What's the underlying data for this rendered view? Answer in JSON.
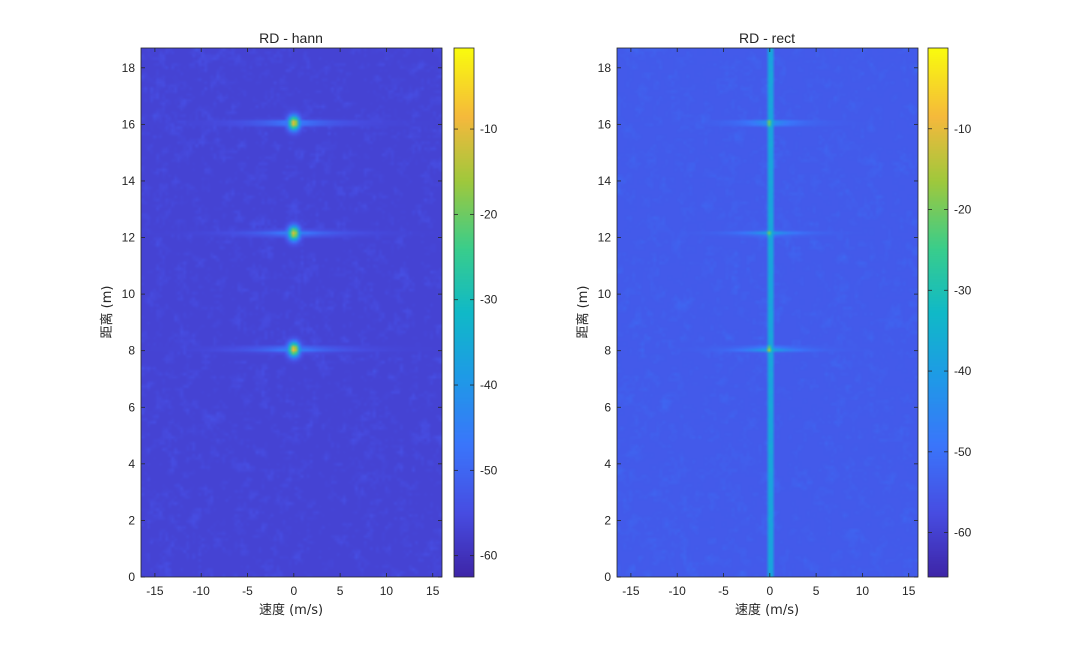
{
  "chart_data": [
    {
      "type": "heatmap",
      "title": "RD - hann",
      "xlabel": "速度 (m/s)",
      "ylabel": "距离 (m)",
      "xlim": [
        -16.5,
        16.0
      ],
      "ylim": [
        0,
        18.7
      ],
      "xticks": [
        -15,
        -10,
        -5,
        0,
        5,
        10,
        15
      ],
      "yticks": [
        0,
        2,
        4,
        6,
        8,
        10,
        12,
        14,
        16,
        18
      ],
      "colorbar": {
        "range": [
          -62.5,
          -0.5
        ],
        "ticks": [
          -60,
          -50,
          -40,
          -30,
          -20,
          -10
        ]
      },
      "noise_floor": -57,
      "targets": [
        {
          "x": 0,
          "y": 16.05,
          "peak": -8
        },
        {
          "x": 0,
          "y": 12.15,
          "peak": -10
        },
        {
          "x": 0,
          "y": 8.05,
          "peak": -7
        }
      ],
      "zero_doppler_line": false
    },
    {
      "type": "heatmap",
      "title": "RD - rect",
      "xlabel": "速度 (m/s)",
      "ylabel": "距离 (m)",
      "xlim": [
        -16.5,
        16.0
      ],
      "ylim": [
        0,
        18.7
      ],
      "xticks": [
        -15,
        -10,
        -5,
        0,
        5,
        10,
        15
      ],
      "yticks": [
        0,
        2,
        4,
        6,
        8,
        10,
        12,
        14,
        16,
        18
      ],
      "colorbar": {
        "range": [
          -65.5,
          0.0
        ],
        "ticks": [
          -60,
          -50,
          -40,
          -30,
          -20,
          -10
        ]
      },
      "noise_floor": -55,
      "targets": [
        {
          "x": 0,
          "y": 16.05,
          "peak": -12
        },
        {
          "x": 0,
          "y": 12.15,
          "peak": -16
        },
        {
          "x": 0,
          "y": 8.05,
          "peak": -8
        }
      ],
      "zero_doppler_line": true
    }
  ]
}
